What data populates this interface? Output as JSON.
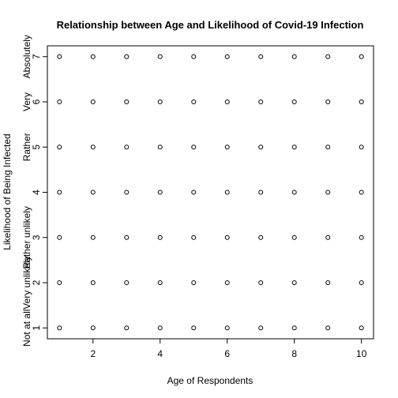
{
  "chart_data": {
    "type": "scatter",
    "title": "Relationship between Age and Likelihood of Covid-19 Infection",
    "xlabel": "Age of Respondents",
    "ylabel": "Likelihood of Being Infected",
    "x": [
      1,
      2,
      3,
      4,
      5,
      6,
      7,
      8,
      9,
      10,
      1,
      2,
      3,
      4,
      5,
      6,
      7,
      8,
      9,
      10,
      1,
      2,
      3,
      4,
      5,
      6,
      7,
      8,
      9,
      10,
      1,
      2,
      3,
      4,
      5,
      6,
      7,
      8,
      9,
      10,
      1,
      2,
      3,
      4,
      5,
      6,
      7,
      8,
      9,
      10,
      1,
      2,
      3,
      4,
      5,
      6,
      7,
      8,
      9,
      10,
      1,
      2,
      3,
      4,
      5,
      6,
      7,
      8,
      9,
      10
    ],
    "y": [
      1,
      1,
      1,
      1,
      1,
      1,
      1,
      1,
      1,
      1,
      2,
      2,
      2,
      2,
      2,
      2,
      2,
      2,
      2,
      2,
      3,
      3,
      3,
      3,
      3,
      3,
      3,
      3,
      3,
      3,
      4,
      4,
      4,
      4,
      4,
      4,
      4,
      4,
      4,
      4,
      5,
      5,
      5,
      5,
      5,
      5,
      5,
      5,
      5,
      5,
      6,
      6,
      6,
      6,
      6,
      6,
      6,
      6,
      6,
      6,
      7,
      7,
      7,
      7,
      7,
      7,
      7,
      7,
      7,
      7
    ],
    "color": "#000000",
    "xlim": [
      0.64,
      10.36
    ],
    "ylim": [
      0.76,
      7.24
    ],
    "xticks": [
      2,
      4,
      6,
      8,
      10
    ],
    "yticks": [
      1,
      2,
      3,
      4,
      5,
      6,
      7
    ],
    "y_category_labels": [
      {
        "value": 1,
        "label": "Not at all"
      },
      {
        "value": 2,
        "label": "Very unlikely"
      },
      {
        "value": 3,
        "label": "Rather unlikely"
      },
      {
        "value": 5,
        "label": "Rather"
      },
      {
        "value": 6,
        "label": "Very"
      },
      {
        "value": 7,
        "label": "Absolutely"
      }
    ]
  }
}
